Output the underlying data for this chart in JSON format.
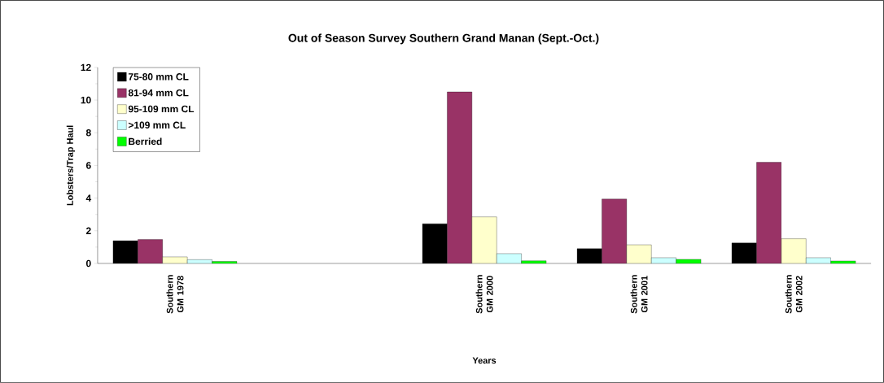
{
  "chart_data": {
    "type": "bar",
    "title": "Out of Season Survey Southern Grand Manan (Sept.-Oct.)",
    "xlabel": "Years",
    "ylabel": "Lobsters/Trap Haul",
    "categories": [
      "Southern GM 1978",
      null,
      "Southern GM 2000",
      "Southern GM 2001",
      "Southern GM 2002"
    ],
    "series": [
      {
        "name": "75-80 mm CL",
        "color": "#000000",
        "values": [
          1.39,
          null,
          2.43,
          0.9,
          1.25
        ]
      },
      {
        "name": "81-94 mm CL",
        "color": "#993366",
        "values": [
          1.46,
          null,
          10.5,
          3.94,
          6.19
        ]
      },
      {
        "name": "95-109 mm CL",
        "color": "#ffffcc",
        "values": [
          0.4,
          null,
          2.85,
          1.14,
          1.51
        ]
      },
      {
        "name": ">109 mm CL",
        "color": "#ccffff",
        "values": [
          0.23,
          null,
          0.6,
          0.35,
          0.35
        ]
      },
      {
        "name": "Berried",
        "color": "#00ff00",
        "values": [
          0.12,
          null,
          0.16,
          0.25,
          0.15
        ]
      }
    ],
    "ylim": [
      0,
      12
    ],
    "yticks": [
      0,
      2,
      4,
      6,
      8,
      10,
      12
    ],
    "legend": "top left"
  }
}
